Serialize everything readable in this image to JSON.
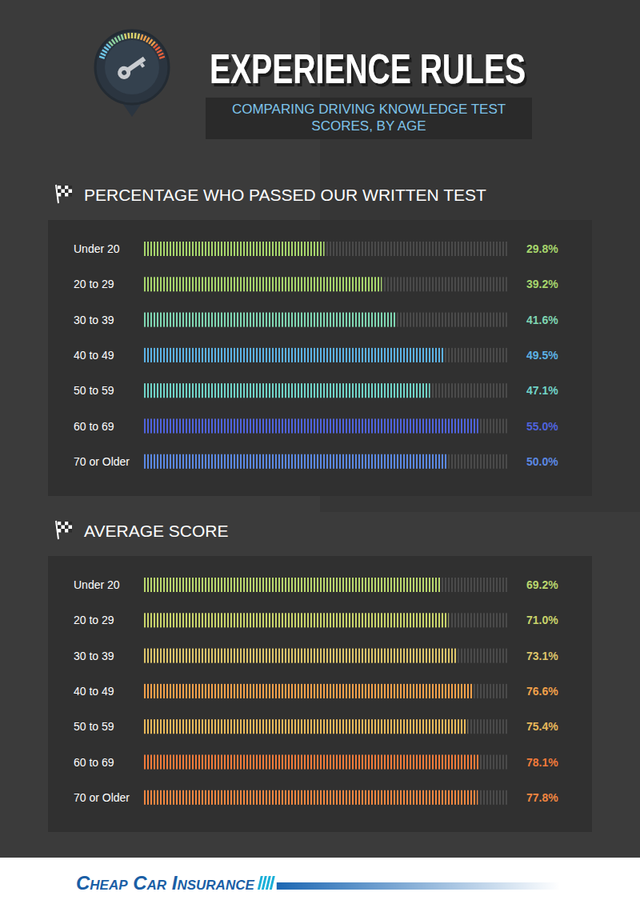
{
  "header": {
    "title": "EXPERIENCE RULES",
    "subtitle": "COMPARING DRIVING KNOWLEDGE TEST SCORES, BY AGE"
  },
  "chart_data": [
    {
      "type": "bar",
      "orientation": "horizontal",
      "title": "PERCENTAGE WHO PASSED OUR WRITTEN TEST",
      "categories": [
        "Under 20",
        "20 to 29",
        "30 to 39",
        "40 to 49",
        "50 to 59",
        "60 to 69",
        "70 or Older"
      ],
      "values": [
        29.8,
        39.2,
        41.6,
        49.5,
        47.1,
        55.0,
        50.0
      ],
      "value_labels": [
        "29.8%",
        "39.2%",
        "41.6%",
        "49.5%",
        "47.1%",
        "55.0%",
        "50.0%"
      ],
      "colors": [
        "#a6d56c",
        "#a6d56c",
        "#7fd6b2",
        "#5cb2e4",
        "#70d4c8",
        "#4f63dd",
        "#5b88e3"
      ],
      "xlim": [
        0,
        60
      ],
      "tick_labels": false,
      "data_labels": true,
      "grid": false
    },
    {
      "type": "bar",
      "orientation": "horizontal",
      "title": "AVERAGE SCORE",
      "categories": [
        "Under 20",
        "20 to 29",
        "30 to 39",
        "40 to 49",
        "50 to 59",
        "60 to 69",
        "70 or Older"
      ],
      "values": [
        69.2,
        71.0,
        73.1,
        76.6,
        75.4,
        78.1,
        77.8
      ],
      "value_labels": [
        "69.2%",
        "71.0%",
        "73.1%",
        "76.6%",
        "75.4%",
        "78.1%",
        "77.8%"
      ],
      "colors": [
        "#b9d66d",
        "#c9d46b",
        "#dcc46a",
        "#f0a04a",
        "#e8b85a",
        "#f07a3a",
        "#f08640"
      ],
      "xlim": [
        0,
        85
      ],
      "tick_labels": false,
      "data_labels": true,
      "grid": false
    }
  ],
  "footer": {
    "brand": "Cheap Car Insurance"
  }
}
